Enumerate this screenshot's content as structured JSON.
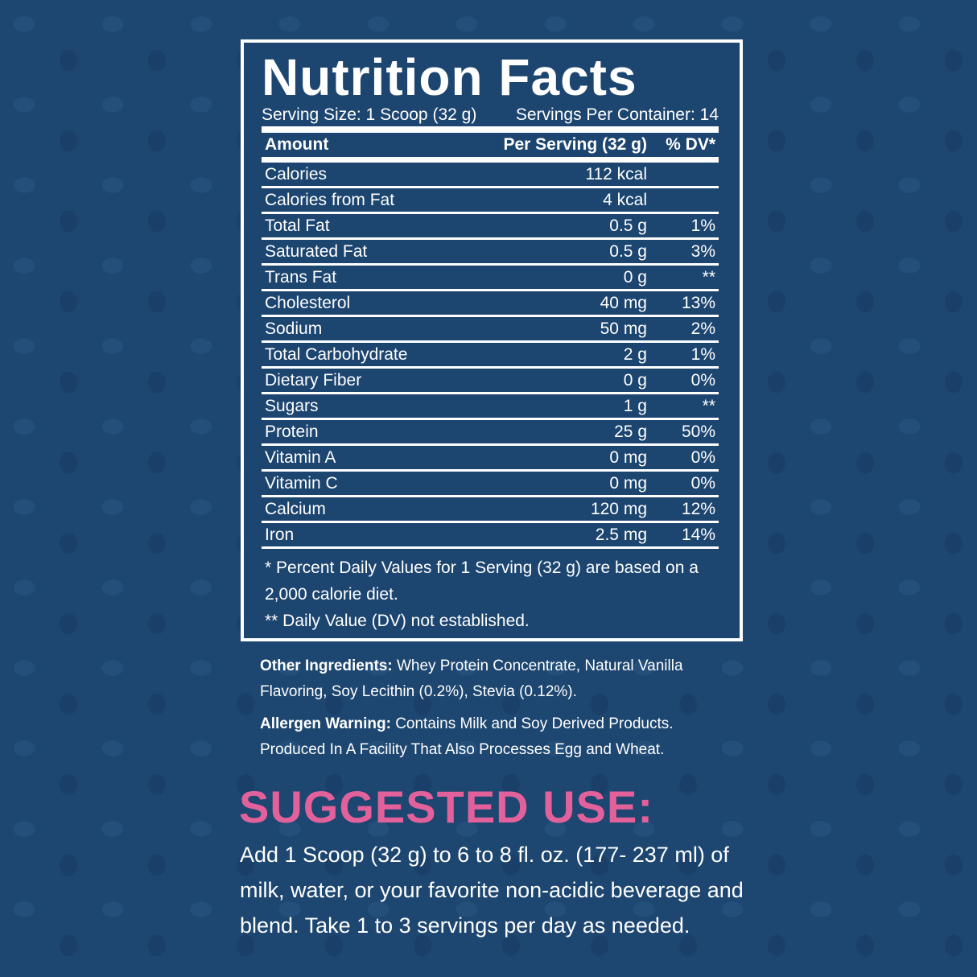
{
  "label": {
    "title": "Nutrition Facts",
    "serving_size": "Serving Size: 1 Scoop (32 g)",
    "servings_per_container": "Servings Per Container: 14",
    "header": {
      "amount": "Amount",
      "per_serving": "Per Serving (32 g)",
      "dv": "% DV*"
    },
    "rows": [
      {
        "name": "Calories",
        "amount": "112 kcal",
        "dv": ""
      },
      {
        "name": "Calories from Fat",
        "amount": "4 kcal",
        "dv": ""
      },
      {
        "name": "Total Fat",
        "amount": "0.5 g",
        "dv": "1%"
      },
      {
        "name": "Saturated Fat",
        "amount": "0.5 g",
        "dv": "3%"
      },
      {
        "name": "Trans Fat",
        "amount": "0 g",
        "dv": "**"
      },
      {
        "name": "Cholesterol",
        "amount": "40 mg",
        "dv": "13%"
      },
      {
        "name": "Sodium",
        "amount": "50 mg",
        "dv": "2%"
      },
      {
        "name": "Total Carbohydrate",
        "amount": "2 g",
        "dv": "1%"
      },
      {
        "name": "Dietary Fiber",
        "amount": "0 g",
        "dv": "0%"
      },
      {
        "name": "Sugars",
        "amount": "1 g",
        "dv": "**"
      },
      {
        "name": "Protein",
        "amount": "25 g",
        "dv": "50%"
      },
      {
        "name": "Vitamin A",
        "amount": "0 mg",
        "dv": "0%"
      },
      {
        "name": "Vitamin C",
        "amount": "0 mg",
        "dv": "0%"
      },
      {
        "name": "Calcium",
        "amount": "120 mg",
        "dv": "12%"
      },
      {
        "name": "Iron",
        "amount": "2.5 mg",
        "dv": "14%"
      }
    ],
    "footnote1": "* Percent Daily Values for 1 Serving (32 g) are based on a 2,000 calorie diet.",
    "footnote2": "** Daily Value (DV) not established."
  },
  "ingredients": {
    "label": "Other Ingredients:",
    "text": " Whey Protein Concentrate, Natural Vanilla Flavoring, Soy Lecithin (0.2%), Stevia (0.12%)."
  },
  "allergen": {
    "label": "Allergen Warning:",
    "text": " Contains Milk and Soy Derived Products. Produced In A Facility That Also Processes Egg and Wheat."
  },
  "suggested_use": {
    "heading": "SUGGESTED USE:",
    "text": "Add 1 Scoop (32 g) to 6 to 8 fl. oz. (177- 237 ml) of milk, water, or your favorite non-acidic beverage and blend. Take 1 to 3 servings per day as needed."
  },
  "colors": {
    "background": "#1d4670",
    "accent": "#e2619b"
  }
}
